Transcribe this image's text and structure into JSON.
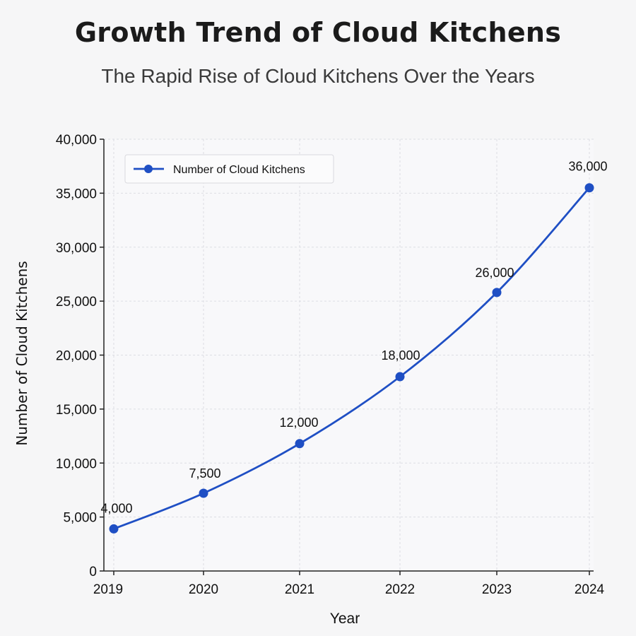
{
  "chart_data": {
    "type": "line",
    "title": "Growth Trend of Cloud Kitchens",
    "subtitle": "The Rapid Rise of Cloud Kitchens Over the Years",
    "xlabel": "Year",
    "ylabel": "Number of Cloud Kitchens",
    "categories": [
      "2019",
      "2020",
      "2021",
      "2022",
      "2023",
      "2024"
    ],
    "yticks": [
      "0",
      "5,000",
      "10,000",
      "15,000",
      "20,000",
      "25,000",
      "30,000",
      "35,000",
      "40,000"
    ],
    "ylim": [
      0,
      40000
    ],
    "grid": true,
    "legend_position": "top-left",
    "series": [
      {
        "name": "Number of Cloud Kitchens",
        "color": "#1f4fc4",
        "values": [
          4000,
          7500,
          12000,
          18000,
          26000,
          36000
        ],
        "plotted_values": [
          3900,
          7200,
          11800,
          18000,
          25800,
          35500
        ],
        "data_labels": [
          "4,000",
          "7,500",
          "12,000",
          "18,000",
          "26,000",
          "36,000"
        ]
      }
    ]
  }
}
